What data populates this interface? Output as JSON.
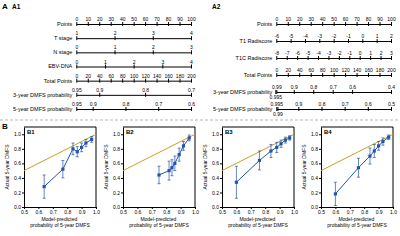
{
  "chart_data": [
    {
      "type": "nomogram",
      "title": "A1",
      "annotations": [
        "A"
      ],
      "scales": [
        {
          "title": "Points",
          "xlim": [
            0,
            100
          ],
          "xticks": [
            0,
            10,
            20,
            30,
            40,
            50,
            60,
            70,
            80,
            90,
            100
          ]
        },
        {
          "title": "T stage",
          "xlim": [
            1,
            4
          ],
          "xticks": [
            1,
            2,
            3,
            4
          ]
        },
        {
          "title": "N stage",
          "xlim": [
            0,
            3
          ],
          "xticks": [
            0,
            1,
            2,
            3
          ]
        },
        {
          "title": "EBV-DNA",
          "xlim": [
            0,
            4
          ],
          "xticks": [
            0,
            1,
            2,
            3,
            4
          ]
        },
        {
          "title": "Total Points",
          "xlim": [
            0,
            200
          ],
          "xticks": [
            0,
            20,
            40,
            60,
            80,
            100,
            120,
            140,
            160,
            180,
            200
          ]
        },
        {
          "title": "3-year DMFS probability",
          "xlim": [
            0.95,
            0.7
          ],
          "xticks": [
            0.95,
            0.9,
            0.8,
            0.7
          ]
        },
        {
          "title": "5-year DMFS probability",
          "xlim": [
            0.95,
            0.6
          ],
          "xticks": [
            0.95,
            0.9,
            0.8,
            0.7,
            0.6
          ]
        }
      ]
    },
    {
      "type": "nomogram",
      "title": "A2",
      "scales": [
        {
          "title": "Points",
          "xlim": [
            0,
            100
          ],
          "xticks": [
            0,
            10,
            20,
            30,
            40,
            50,
            60,
            70,
            80,
            90,
            100
          ]
        },
        {
          "title": "T1 Radiscore",
          "xlim": [
            -6,
            2
          ],
          "xticks": [
            -6,
            -5,
            -4,
            -3,
            -2,
            -1,
            0,
            1,
            2
          ]
        },
        {
          "title": "T1C Radiscore",
          "xlim": [
            -8,
            3
          ],
          "xticks": [
            -8,
            -7,
            -6,
            -5,
            -4,
            -3,
            -2,
            -1,
            0,
            1,
            2,
            3
          ]
        },
        {
          "title": "Total Points",
          "xlim": [
            0,
            200
          ],
          "xticks": [
            0,
            20,
            40,
            60,
            80,
            100,
            120,
            140,
            160,
            180,
            200
          ]
        },
        {
          "title": "3-year DMFS probability",
          "xlim": [
            0.99,
            0.4
          ],
          "xticks": [
            0.99,
            0.995,
            0.9,
            0.8,
            0.7,
            0.6,
            0.4
          ]
        },
        {
          "title": "5-year DMFS probability",
          "xlim": [
            0.995,
            0.5
          ],
          "xticks": [
            0.995,
            0.99,
            0.9,
            0.8,
            0.7,
            0.6,
            0.5
          ]
        }
      ]
    },
    {
      "type": "line",
      "title": "B1",
      "annotations": [
        "B"
      ],
      "xlabel": "Model-predicted probability of 5-year DMFS",
      "ylabel": "Actual 5-year DMFS",
      "xlim": [
        0.5,
        1.0
      ],
      "ylim": [
        0.0,
        1.1
      ],
      "xticks": [
        0.5,
        0.6,
        0.7,
        0.8,
        0.9,
        {
          "value": 1.0,
          "label": "1.0"
        }
      ],
      "yticks": [
        {
          "value": 0.0,
          "label": "0.0"
        },
        0.2,
        0.4,
        0.6,
        0.8,
        {
          "value": 1.0,
          "label": "1.0"
        }
      ],
      "series": [
        {
          "type": "line",
          "color": "#c8a020",
          "x": [
            0.5,
            1.0
          ],
          "values": [
            0.5,
            1.0
          ]
        },
        {
          "type": "line",
          "marker": "square",
          "color": "#2255aa",
          "x": [
            0.64,
            0.77,
            0.84,
            0.87,
            0.9,
            0.93,
            0.97
          ],
          "values": [
            0.28,
            0.52,
            0.8,
            0.76,
            0.82,
            0.88,
            0.93
          ],
          "errors_lo": [
            0.16,
            0.12,
            0.08,
            0.07,
            0.06,
            0.05,
            0.04
          ],
          "errors_hi": [
            0.16,
            0.12,
            0.08,
            0.07,
            0.06,
            0.05,
            0.04
          ]
        }
      ]
    },
    {
      "type": "line",
      "title": "B2",
      "xlabel": "Model-predicted probability of 5-year DMFS",
      "ylabel": "Actual 5-year DMFS",
      "xlim": [
        0.5,
        1.0
      ],
      "ylim": [
        0.0,
        1.1
      ],
      "xticks": [
        0.5,
        0.6,
        0.7,
        0.8,
        0.9,
        {
          "value": 1.0,
          "label": "1.0"
        }
      ],
      "yticks": [
        {
          "value": 0.0,
          "label": "0.0"
        },
        0.2,
        0.4,
        0.6,
        0.8,
        {
          "value": 1.0,
          "label": "1.0"
        }
      ],
      "series": [
        {
          "type": "line",
          "color": "#c8a020",
          "x": [
            0.5,
            1.0
          ],
          "values": [
            0.5,
            1.0
          ]
        },
        {
          "type": "line",
          "marker": "square",
          "color": "#2255aa",
          "x": [
            0.75,
            0.82,
            0.84,
            0.86,
            0.89,
            0.92,
            0.96
          ],
          "values": [
            0.44,
            0.5,
            0.54,
            0.6,
            0.72,
            0.84,
            0.95
          ],
          "errors_lo": [
            0.12,
            0.13,
            0.11,
            0.1,
            0.09,
            0.06,
            0.04
          ],
          "errors_hi": [
            0.12,
            0.13,
            0.11,
            0.1,
            0.09,
            0.06,
            0.04
          ]
        }
      ]
    },
    {
      "type": "line",
      "title": "B3",
      "xlabel": "Model-predicted probability of 5-year DMFS",
      "ylabel": "Actual 5-year DMFS",
      "xlim": [
        0.5,
        1.0
      ],
      "ylim": [
        0.0,
        1.1
      ],
      "xticks": [
        0.5,
        0.6,
        0.7,
        0.8,
        0.9,
        {
          "value": 1.0,
          "label": "1.0"
        }
      ],
      "yticks": [
        {
          "value": 0.0,
          "label": "0.0"
        },
        0.2,
        0.4,
        0.6,
        0.8,
        {
          "value": 1.0,
          "label": "1.0"
        }
      ],
      "series": [
        {
          "type": "line",
          "color": "#c8a020",
          "x": [
            0.5,
            1.0
          ],
          "values": [
            0.5,
            1.0
          ]
        },
        {
          "type": "line",
          "marker": "square",
          "color": "#2255aa",
          "x": [
            0.6,
            0.76,
            0.84,
            0.88,
            0.91,
            0.94,
            0.97
          ],
          "values": [
            0.34,
            0.64,
            0.77,
            0.82,
            0.87,
            0.92,
            0.95
          ],
          "errors_lo": [
            0.22,
            0.13,
            0.09,
            0.07,
            0.05,
            0.04,
            0.03
          ],
          "errors_hi": [
            0.22,
            0.13,
            0.09,
            0.07,
            0.05,
            0.04,
            0.03
          ]
        }
      ]
    },
    {
      "type": "line",
      "title": "B4",
      "xlabel": "Model-predicted probability of 5-year DMFS",
      "ylabel": "Actual 5-year DMFS",
      "xlim": [
        0.5,
        1.0
      ],
      "ylim": [
        0.0,
        1.1
      ],
      "xticks": [
        0.5,
        0.6,
        0.7,
        0.8,
        0.9,
        {
          "value": 1.0,
          "label": "1.0"
        }
      ],
      "yticks": [
        {
          "value": 0.0,
          "label": "0.0"
        },
        0.2,
        0.4,
        0.6,
        0.8,
        {
          "value": 1.0,
          "label": "1.0"
        }
      ],
      "series": [
        {
          "type": "line",
          "color": "#c8a020",
          "x": [
            0.5,
            1.0
          ],
          "values": [
            0.5,
            1.0
          ]
        },
        {
          "type": "line",
          "marker": "square",
          "color": "#2255aa",
          "x": [
            0.6,
            0.76,
            0.84,
            0.87,
            0.9,
            0.93,
            0.97
          ],
          "values": [
            0.18,
            0.54,
            0.7,
            0.77,
            0.84,
            0.9,
            0.96
          ],
          "errors_lo": [
            0.16,
            0.13,
            0.11,
            0.09,
            0.06,
            0.05,
            0.03
          ],
          "errors_hi": [
            0.16,
            0.13,
            0.11,
            0.09,
            0.06,
            0.05,
            0.03
          ]
        }
      ]
    }
  ]
}
